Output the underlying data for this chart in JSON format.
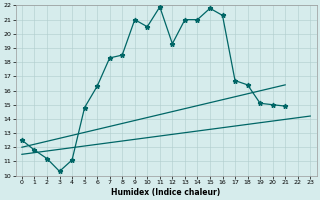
{
  "xlabel": "Humidex (Indice chaleur)",
  "xlim": [
    -0.5,
    23.5
  ],
  "ylim": [
    10,
    22
  ],
  "xticks": [
    0,
    1,
    2,
    3,
    4,
    5,
    6,
    7,
    8,
    9,
    10,
    11,
    12,
    13,
    14,
    15,
    16,
    17,
    18,
    19,
    20,
    21,
    22,
    23
  ],
  "yticks": [
    10,
    11,
    12,
    13,
    14,
    15,
    16,
    17,
    18,
    19,
    20,
    21,
    22
  ],
  "background_color": "#d6ecec",
  "grid_color": "#b0cccc",
  "line_color": "#006666",
  "line1_x": [
    0,
    1,
    2,
    3,
    4,
    5,
    6,
    7,
    8,
    9,
    10,
    11,
    12,
    13,
    14,
    15,
    16,
    17,
    18,
    19,
    20,
    21
  ],
  "line1_y": [
    12.5,
    11.8,
    11.2,
    10.3,
    11.1,
    14.8,
    16.3,
    18.3,
    18.5,
    21.0,
    20.5,
    21.9,
    19.3,
    21.0,
    21.0,
    21.8,
    21.3,
    16.7,
    16.4,
    15.1,
    15.0,
    14.9
  ],
  "line2_x": [
    0,
    21
  ],
  "line2_y": [
    12.0,
    16.4
  ],
  "line3_x": [
    0,
    23
  ],
  "line3_y": [
    11.5,
    14.2
  ]
}
